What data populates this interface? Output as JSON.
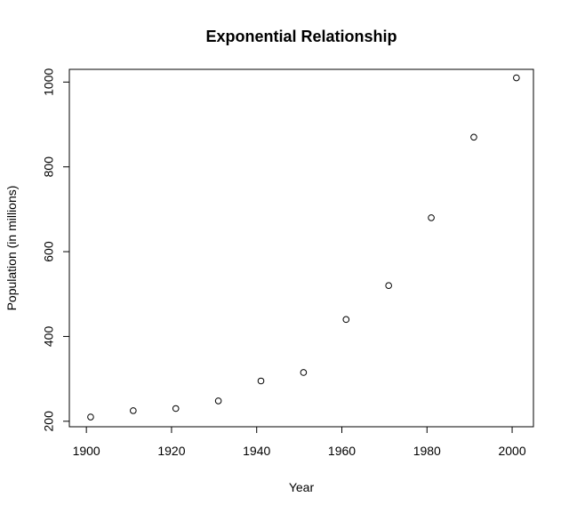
{
  "chart_data": {
    "type": "scatter",
    "title": "Exponential Relationship",
    "xlabel": "Year",
    "ylabel": "Population (in millions)",
    "x": [
      1901,
      1911,
      1921,
      1931,
      1941,
      1951,
      1961,
      1971,
      1981,
      1991,
      2001
    ],
    "y": [
      210,
      225,
      230,
      248,
      295,
      315,
      440,
      520,
      680,
      870,
      1010
    ],
    "xlim": [
      1896,
      2005
    ],
    "ylim": [
      187,
      1030
    ],
    "x_ticks": [
      1900,
      1920,
      1940,
      1960,
      1980,
      2000
    ],
    "y_ticks": [
      200,
      400,
      600,
      800,
      1000
    ],
    "x_tick_labels": [
      "1900",
      "1920",
      "1940",
      "1960",
      "1980",
      "2000"
    ],
    "y_tick_labels": [
      "200",
      "400",
      "600",
      "800",
      "1000"
    ],
    "grid": false,
    "legend": false,
    "marker": "open-circle",
    "colors": {
      "points": "#000000",
      "axes": "#000000",
      "background": "#ffffff"
    }
  }
}
